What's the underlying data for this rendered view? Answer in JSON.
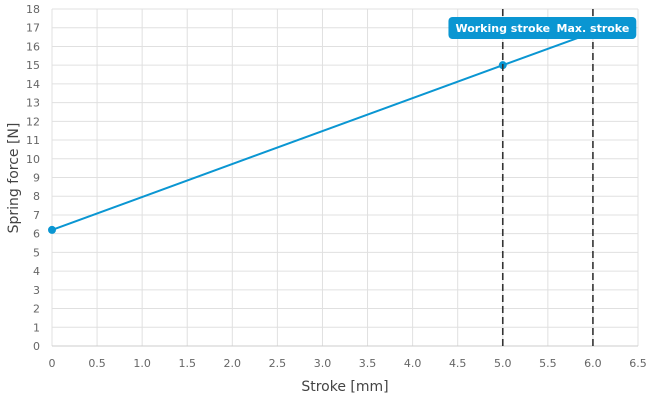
{
  "chart_data": {
    "type": "line",
    "xlabel": "Stroke [mm]",
    "ylabel": "Spring force [N]",
    "xlim": [
      0,
      6.5
    ],
    "ylim": [
      0,
      18
    ],
    "x_ticks": [
      "0",
      "0.5",
      "1.0",
      "1.5",
      "2.0",
      "2.5",
      "3.0",
      "3.5",
      "4.0",
      "4.5",
      "5.0",
      "5.5",
      "6.0",
      "6.5"
    ],
    "y_ticks": [
      "0",
      "1",
      "2",
      "3",
      "4",
      "5",
      "6",
      "7",
      "8",
      "9",
      "10",
      "11",
      "12",
      "13",
      "14",
      "15",
      "16",
      "17",
      "18"
    ],
    "grid": true,
    "series": [
      {
        "color": "#0a96d2",
        "x": [
          0,
          5.0,
          6.0
        ],
        "y": [
          6.2,
          15.0,
          16.75
        ]
      }
    ],
    "markers": [
      {
        "x": 0,
        "y": 6.2
      },
      {
        "x": 5.0,
        "y": 15.0
      }
    ],
    "annotations": [
      {
        "label": "Working stroke",
        "x": 5.0,
        "style": "dashed vertical line"
      },
      {
        "label": "Max. stroke",
        "x": 6.0,
        "style": "dashed vertical line"
      }
    ],
    "colors": {
      "line": "#0a96d2",
      "flag": "#0a96d2",
      "grid": "#e0e0e0",
      "dashed": "#333333"
    }
  }
}
